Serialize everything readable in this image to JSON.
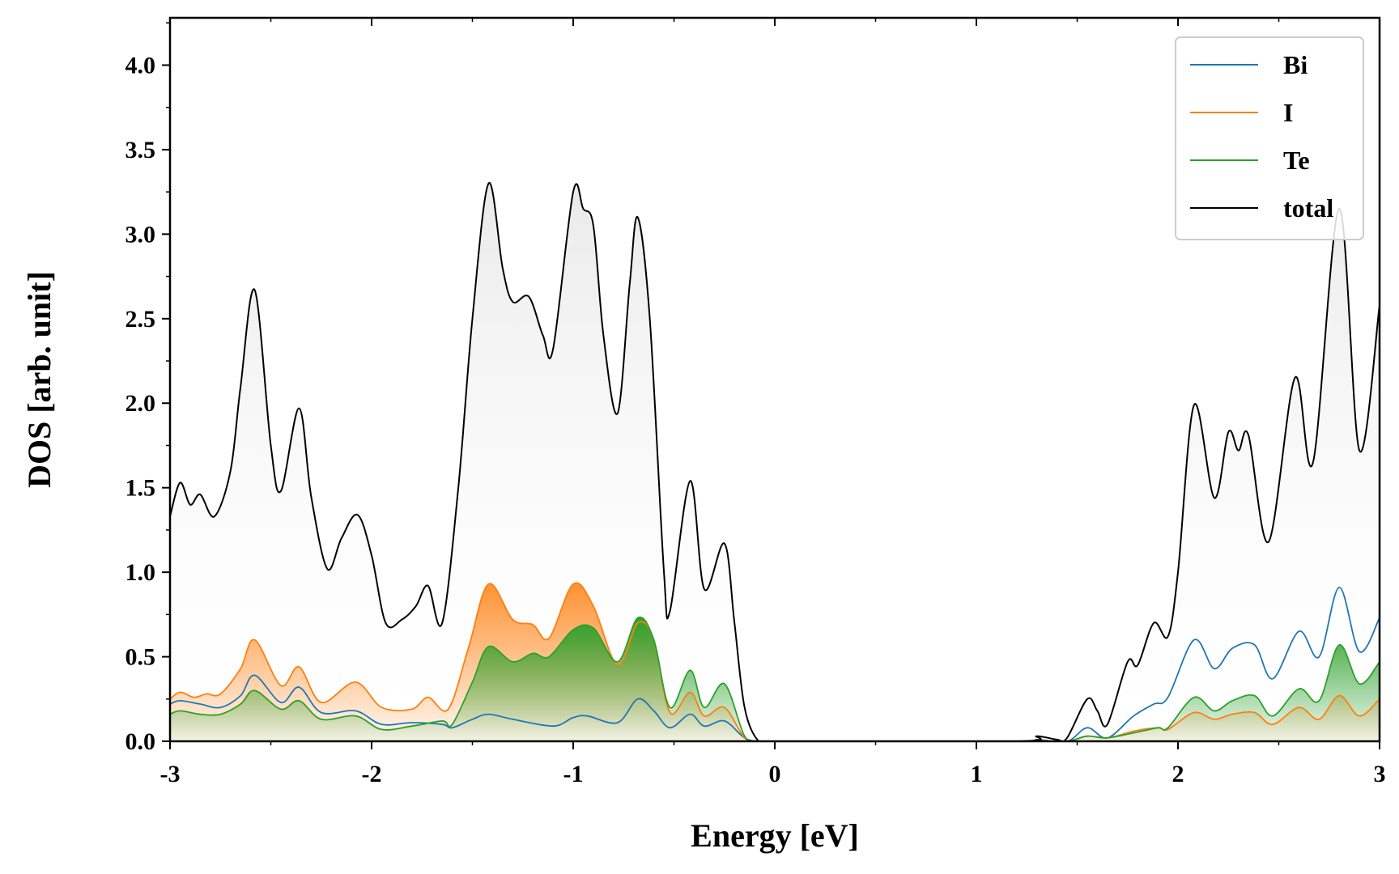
{
  "chart_data": {
    "type": "line",
    "title": "",
    "xlabel": "Energy [eV]",
    "ylabel": "DOS [arb. unit]",
    "xlim": [
      -3,
      3
    ],
    "ylim": [
      0,
      4.28
    ],
    "xticks": [
      -3,
      -2,
      -1,
      0,
      1,
      2,
      3
    ],
    "xtick_labels": [
      "-3",
      "-2",
      "-1",
      "0",
      "1",
      "2",
      "3"
    ],
    "yticks": [
      0,
      0.5,
      1,
      1.5,
      2,
      2.5,
      3,
      3.5,
      4
    ],
    "ytick_labels": [
      "0.0",
      "0.5",
      "1.0",
      "1.5",
      "2.0",
      "2.5",
      "3.0",
      "3.5",
      "4.0"
    ],
    "grid": false,
    "legend_position": "top-right",
    "series": [
      {
        "name": "Bi",
        "color": "#1f77b4",
        "filled": false,
        "points": [
          [
            -3,
            0.22
          ],
          [
            -2.95,
            0.24
          ],
          [
            -2.85,
            0.22
          ],
          [
            -2.75,
            0.2
          ],
          [
            -2.65,
            0.27
          ],
          [
            -2.58,
            0.39
          ],
          [
            -2.45,
            0.23
          ],
          [
            -2.36,
            0.32
          ],
          [
            -2.25,
            0.17
          ],
          [
            -2.08,
            0.18
          ],
          [
            -1.95,
            0.1
          ],
          [
            -1.8,
            0.11
          ],
          [
            -1.65,
            0.1
          ],
          [
            -1.6,
            0.08
          ],
          [
            -1.5,
            0.13
          ],
          [
            -1.42,
            0.16
          ],
          [
            -1.3,
            0.13
          ],
          [
            -1.1,
            0.09
          ],
          [
            -1.0,
            0.14
          ],
          [
            -0.93,
            0.15
          ],
          [
            -0.78,
            0.11
          ],
          [
            -0.68,
            0.25
          ],
          [
            -0.6,
            0.18
          ],
          [
            -0.52,
            0.08
          ],
          [
            -0.42,
            0.16
          ],
          [
            -0.35,
            0.09
          ],
          [
            -0.25,
            0.12
          ],
          [
            -0.15,
            0.02
          ],
          [
            -0.08,
            0.0
          ],
          [
            0,
            0
          ],
          [
            1.2,
            0
          ],
          [
            1.3,
            0.01
          ],
          [
            1.45,
            0.0
          ],
          [
            1.55,
            0.08
          ],
          [
            1.65,
            0.02
          ],
          [
            1.78,
            0.15
          ],
          [
            1.88,
            0.22
          ],
          [
            1.95,
            0.26
          ],
          [
            2.08,
            0.6
          ],
          [
            2.18,
            0.43
          ],
          [
            2.27,
            0.55
          ],
          [
            2.38,
            0.57
          ],
          [
            2.47,
            0.37
          ],
          [
            2.6,
            0.65
          ],
          [
            2.7,
            0.5
          ],
          [
            2.8,
            0.91
          ],
          [
            2.9,
            0.53
          ],
          [
            3.0,
            0.73
          ]
        ]
      },
      {
        "name": "I",
        "color": "#ff7f0e",
        "filled": true,
        "points": [
          [
            -3,
            0.25
          ],
          [
            -2.95,
            0.29
          ],
          [
            -2.88,
            0.26
          ],
          [
            -2.82,
            0.28
          ],
          [
            -2.75,
            0.28
          ],
          [
            -2.65,
            0.43
          ],
          [
            -2.58,
            0.6
          ],
          [
            -2.45,
            0.33
          ],
          [
            -2.36,
            0.44
          ],
          [
            -2.25,
            0.23
          ],
          [
            -2.08,
            0.35
          ],
          [
            -1.95,
            0.2
          ],
          [
            -1.8,
            0.19
          ],
          [
            -1.72,
            0.26
          ],
          [
            -1.62,
            0.19
          ],
          [
            -1.52,
            0.55
          ],
          [
            -1.42,
            0.93
          ],
          [
            -1.3,
            0.72
          ],
          [
            -1.2,
            0.69
          ],
          [
            -1.12,
            0.61
          ],
          [
            -1.0,
            0.93
          ],
          [
            -0.9,
            0.8
          ],
          [
            -0.78,
            0.45
          ],
          [
            -0.68,
            0.7
          ],
          [
            -0.6,
            0.6
          ],
          [
            -0.52,
            0.17
          ],
          [
            -0.42,
            0.29
          ],
          [
            -0.35,
            0.15
          ],
          [
            -0.25,
            0.2
          ],
          [
            -0.15,
            0.02
          ],
          [
            -0.08,
            0.0
          ],
          [
            0,
            0
          ],
          [
            1.3,
            0
          ],
          [
            1.45,
            0.0
          ],
          [
            1.55,
            0.03
          ],
          [
            1.65,
            0.02
          ],
          [
            1.78,
            0.06
          ],
          [
            1.9,
            0.08
          ],
          [
            1.95,
            0.07
          ],
          [
            2.08,
            0.17
          ],
          [
            2.18,
            0.13
          ],
          [
            2.27,
            0.16
          ],
          [
            2.38,
            0.17
          ],
          [
            2.47,
            0.1
          ],
          [
            2.6,
            0.2
          ],
          [
            2.7,
            0.13
          ],
          [
            2.8,
            0.27
          ],
          [
            2.9,
            0.15
          ],
          [
            3.0,
            0.25
          ]
        ]
      },
      {
        "name": "Te",
        "color": "#2ca02c",
        "filled": true,
        "points": [
          [
            -3,
            0.16
          ],
          [
            -2.95,
            0.18
          ],
          [
            -2.85,
            0.16
          ],
          [
            -2.75,
            0.16
          ],
          [
            -2.65,
            0.22
          ],
          [
            -2.58,
            0.3
          ],
          [
            -2.45,
            0.19
          ],
          [
            -2.36,
            0.24
          ],
          [
            -2.25,
            0.13
          ],
          [
            -2.08,
            0.15
          ],
          [
            -1.95,
            0.07
          ],
          [
            -1.8,
            0.09
          ],
          [
            -1.65,
            0.12
          ],
          [
            -1.6,
            0.1
          ],
          [
            -1.5,
            0.35
          ],
          [
            -1.42,
            0.56
          ],
          [
            -1.3,
            0.47
          ],
          [
            -1.2,
            0.52
          ],
          [
            -1.12,
            0.5
          ],
          [
            -1.0,
            0.66
          ],
          [
            -0.9,
            0.67
          ],
          [
            -0.78,
            0.47
          ],
          [
            -0.68,
            0.73
          ],
          [
            -0.6,
            0.6
          ],
          [
            -0.52,
            0.2
          ],
          [
            -0.42,
            0.42
          ],
          [
            -0.35,
            0.2
          ],
          [
            -0.25,
            0.34
          ],
          [
            -0.15,
            0.03
          ],
          [
            -0.08,
            0.0
          ],
          [
            0,
            0
          ],
          [
            1.3,
            0
          ],
          [
            1.45,
            0.0
          ],
          [
            1.55,
            0.03
          ],
          [
            1.65,
            0.02
          ],
          [
            1.78,
            0.05
          ],
          [
            1.9,
            0.08
          ],
          [
            1.95,
            0.08
          ],
          [
            2.08,
            0.26
          ],
          [
            2.18,
            0.18
          ],
          [
            2.27,
            0.24
          ],
          [
            2.38,
            0.27
          ],
          [
            2.47,
            0.15
          ],
          [
            2.6,
            0.31
          ],
          [
            2.7,
            0.24
          ],
          [
            2.8,
            0.57
          ],
          [
            2.9,
            0.34
          ],
          [
            3.0,
            0.47
          ]
        ]
      },
      {
        "name": "total",
        "color": "#000000",
        "filled": true,
        "points": [
          [
            -3,
            1.33
          ],
          [
            -2.95,
            1.53
          ],
          [
            -2.9,
            1.4
          ],
          [
            -2.85,
            1.46
          ],
          [
            -2.78,
            1.33
          ],
          [
            -2.7,
            1.6
          ],
          [
            -2.65,
            2.1
          ],
          [
            -2.58,
            2.67
          ],
          [
            -2.5,
            1.75
          ],
          [
            -2.45,
            1.48
          ],
          [
            -2.36,
            1.97
          ],
          [
            -2.3,
            1.45
          ],
          [
            -2.22,
            1.02
          ],
          [
            -2.15,
            1.2
          ],
          [
            -2.07,
            1.34
          ],
          [
            -2.0,
            1.1
          ],
          [
            -1.93,
            0.7
          ],
          [
            -1.85,
            0.72
          ],
          [
            -1.78,
            0.8
          ],
          [
            -1.72,
            0.92
          ],
          [
            -1.65,
            0.7
          ],
          [
            -1.57,
            1.5
          ],
          [
            -1.5,
            2.5
          ],
          [
            -1.42,
            3.3
          ],
          [
            -1.35,
            2.8
          ],
          [
            -1.3,
            2.6
          ],
          [
            -1.22,
            2.63
          ],
          [
            -1.15,
            2.4
          ],
          [
            -1.1,
            2.32
          ],
          [
            -1.0,
            3.25
          ],
          [
            -0.95,
            3.15
          ],
          [
            -0.9,
            3.05
          ],
          [
            -0.85,
            2.4
          ],
          [
            -0.78,
            1.94
          ],
          [
            -0.72,
            2.7
          ],
          [
            -0.68,
            3.1
          ],
          [
            -0.62,
            2.5
          ],
          [
            -0.55,
            1.0
          ],
          [
            -0.52,
            0.77
          ],
          [
            -0.42,
            1.54
          ],
          [
            -0.35,
            0.9
          ],
          [
            -0.25,
            1.17
          ],
          [
            -0.2,
            0.7
          ],
          [
            -0.15,
            0.2
          ],
          [
            -0.08,
            0.0
          ],
          [
            0,
            0
          ],
          [
            1.2,
            0
          ],
          [
            1.3,
            0.03
          ],
          [
            1.4,
            0.01
          ],
          [
            1.45,
            0.02
          ],
          [
            1.55,
            0.25
          ],
          [
            1.6,
            0.18
          ],
          [
            1.65,
            0.1
          ],
          [
            1.75,
            0.47
          ],
          [
            1.8,
            0.45
          ],
          [
            1.88,
            0.7
          ],
          [
            1.95,
            0.62
          ],
          [
            2.0,
            1.0
          ],
          [
            2.08,
            1.99
          ],
          [
            2.18,
            1.44
          ],
          [
            2.25,
            1.83
          ],
          [
            2.3,
            1.72
          ],
          [
            2.35,
            1.81
          ],
          [
            2.45,
            1.18
          ],
          [
            2.58,
            2.15
          ],
          [
            2.67,
            1.65
          ],
          [
            2.8,
            3.15
          ],
          [
            2.9,
            1.72
          ],
          [
            3.0,
            2.58
          ]
        ]
      }
    ]
  }
}
